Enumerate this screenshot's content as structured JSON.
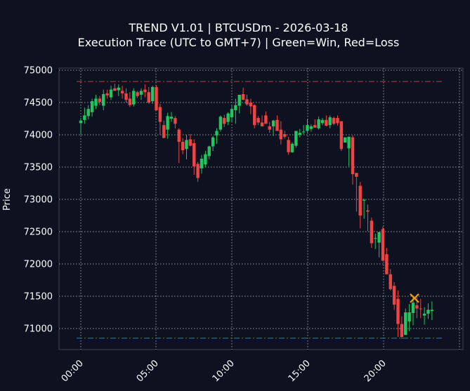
{
  "chart_data": {
    "type": "candlestick",
    "title": "TREND V1.01 | BTCUSDm - 2026-03-18",
    "subtitle": "Execution Trace (UTC to GMT+7) | Green=Win, Red=Loss",
    "xlabel": "",
    "ylabel": "Price",
    "ylim": [
      70660,
      75030
    ],
    "yticks": [
      71000,
      71500,
      72000,
      72500,
      73000,
      73500,
      74000,
      74500,
      75000
    ],
    "xticks": [
      "00:00",
      "05:00",
      "10:00",
      "15:00",
      "20:00"
    ],
    "grid": true,
    "bar_interval_minutes": 15,
    "colors": {
      "up": "#22c55e",
      "down": "#ef4444",
      "background": "#0d1120",
      "grid": "#c8c8c8",
      "axis": "#3a4455",
      "upper_line": "#c0393b",
      "lower_line": "#3b6fd4",
      "marker": "#f59e0b"
    },
    "horizontal_lines": [
      {
        "name": "upper level",
        "price": 74825,
        "style": "dashdot",
        "color": "#c0393b"
      },
      {
        "name": "lower level",
        "price": 70850,
        "style": "dashdot",
        "color": "#3b6fd4"
      }
    ],
    "markers": [
      {
        "type": "x",
        "time": "21:45",
        "price": 71470,
        "color": "#f59e0b"
      }
    ],
    "ohlc": [
      [
        74180,
        74260,
        74000,
        74220
      ],
      [
        74230,
        74420,
        74170,
        74300
      ],
      [
        74290,
        74460,
        74240,
        74400
      ],
      [
        74350,
        74560,
        74280,
        74520
      ],
      [
        74450,
        74620,
        74400,
        74560
      ],
      [
        74560,
        74600,
        74460,
        74510
      ],
      [
        74450,
        74700,
        74380,
        74630
      ],
      [
        74640,
        74700,
        74560,
        74610
      ],
      [
        74580,
        74760,
        74540,
        74700
      ],
      [
        74720,
        74790,
        74680,
        74680
      ],
      [
        74690,
        74780,
        74600,
        74730
      ],
      [
        74680,
        74760,
        74560,
        74640
      ],
      [
        74640,
        74720,
        74500,
        74540
      ],
      [
        74560,
        74660,
        74430,
        74460
      ],
      [
        74470,
        74720,
        74440,
        74680
      ],
      [
        74660,
        74680,
        74570,
        74600
      ],
      [
        74620,
        74720,
        74540,
        74680
      ],
      [
        74700,
        74780,
        74580,
        74660
      ],
      [
        74660,
        74740,
        74480,
        74500
      ],
      [
        74520,
        74760,
        74480,
        74740
      ],
      [
        74740,
        74760,
        74380,
        74380
      ],
      [
        74430,
        74480,
        74000,
        74200
      ],
      [
        74150,
        74220,
        73950,
        73950
      ],
      [
        74080,
        74340,
        73940,
        74290
      ],
      [
        74250,
        74350,
        74200,
        74280
      ],
      [
        74260,
        74290,
        74100,
        74170
      ],
      [
        74080,
        74100,
        73560,
        73890
      ],
      [
        73890,
        73950,
        73700,
        73760
      ],
      [
        73780,
        74000,
        73620,
        73920
      ],
      [
        73930,
        74010,
        73820,
        73830
      ],
      [
        73870,
        73930,
        73380,
        73510
      ],
      [
        73550,
        73580,
        73270,
        73330
      ],
      [
        73480,
        73690,
        73400,
        73630
      ],
      [
        73540,
        73750,
        73500,
        73700
      ],
      [
        73670,
        73830,
        73620,
        73820
      ],
      [
        73820,
        73980,
        73750,
        73960
      ],
      [
        73990,
        74100,
        73860,
        74060
      ],
      [
        74080,
        74300,
        74050,
        74280
      ],
      [
        74260,
        74310,
        74120,
        74170
      ],
      [
        74200,
        74350,
        74150,
        74330
      ],
      [
        74270,
        74450,
        74200,
        74400
      ],
      [
        74380,
        74560,
        74170,
        74460
      ],
      [
        74450,
        74620,
        74330,
        74620
      ],
      [
        74630,
        74730,
        74560,
        74540
      ],
      [
        74550,
        74620,
        74450,
        74470
      ],
      [
        74500,
        74560,
        74320,
        74440
      ],
      [
        74460,
        74470,
        74100,
        74150
      ],
      [
        74260,
        74290,
        74150,
        74190
      ],
      [
        74190,
        74300,
        74140,
        74130
      ],
      [
        74300,
        74360,
        74170,
        74170
      ],
      [
        74130,
        74200,
        74030,
        74080
      ],
      [
        74130,
        74230,
        73980,
        74220
      ],
      [
        74230,
        74300,
        74080,
        74060
      ],
      [
        74080,
        74210,
        73850,
        73930
      ],
      [
        74010,
        74060,
        73940,
        73970
      ],
      [
        73920,
        73970,
        73690,
        73730
      ],
      [
        73730,
        73880,
        73720,
        73860
      ],
      [
        73830,
        74060,
        73800,
        74060
      ],
      [
        74000,
        74090,
        73960,
        74030
      ],
      [
        74050,
        74150,
        74010,
        74050
      ],
      [
        74060,
        74240,
        74030,
        74150
      ],
      [
        74090,
        74160,
        74050,
        74130
      ],
      [
        74150,
        74240,
        74120,
        74110
      ],
      [
        74100,
        74280,
        74080,
        74240
      ],
      [
        74180,
        74260,
        74150,
        74230
      ],
      [
        74230,
        74300,
        74130,
        74140
      ],
      [
        74150,
        74300,
        74100,
        74270
      ],
      [
        74260,
        74280,
        74150,
        74170
      ],
      [
        74260,
        74300,
        74140,
        74180
      ],
      [
        74210,
        74210,
        73750,
        73780
      ],
      [
        73880,
        73920,
        73880,
        73960
      ],
      [
        73790,
        73950,
        73510,
        73970
      ],
      [
        73960,
        73990,
        73230,
        73390
      ],
      [
        73410,
        73350,
        72810,
        73350
      ],
      [
        73210,
        73270,
        72550,
        72750
      ],
      [
        72980,
        73010,
        72700,
        72990
      ],
      [
        72830,
        72920,
        72510,
        72810
      ],
      [
        72670,
        72720,
        72250,
        72320
      ],
      [
        72400,
        72470,
        72230,
        72400
      ],
      [
        72330,
        72500,
        72100,
        72490
      ],
      [
        72540,
        72580,
        72040,
        72050
      ],
      [
        72150,
        72250,
        71890,
        71840
      ],
      [
        71840,
        71920,
        71590,
        71610
      ],
      [
        71660,
        71720,
        71290,
        71370
      ],
      [
        71460,
        71590,
        70870,
        71070
      ],
      [
        71070,
        71190,
        70840,
        70870
      ],
      [
        70900,
        71310,
        70960,
        71250
      ],
      [
        71110,
        71380,
        70960,
        71250
      ],
      [
        71240,
        71490,
        71050,
        71400
      ],
      [
        71360,
        71490,
        71160,
        71310
      ],
      [
        71310,
        71460,
        71160,
        71300
      ],
      [
        71200,
        71330,
        71060,
        71230
      ],
      [
        71230,
        71390,
        71150,
        71290
      ],
      [
        71270,
        71420,
        71130,
        71290
      ]
    ]
  }
}
